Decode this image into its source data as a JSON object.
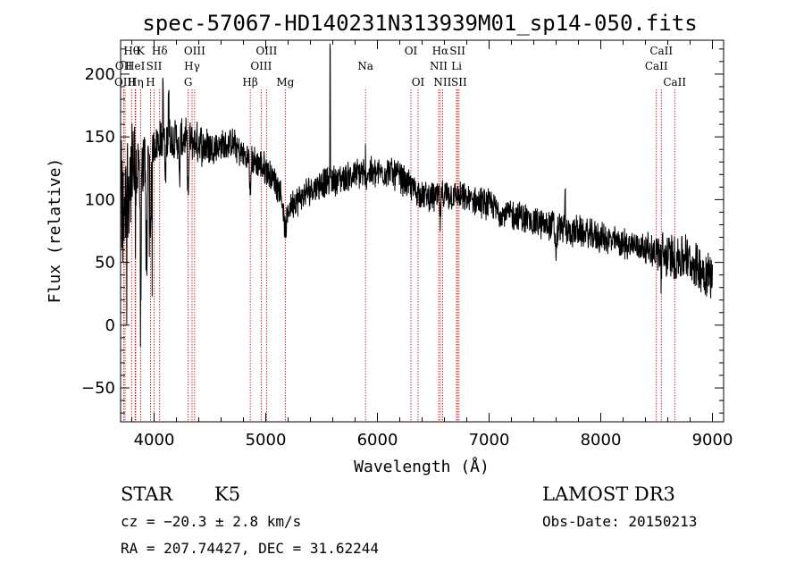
{
  "chart_data": {
    "type": "line",
    "title": "spec-57067-HD140231N313939M01_sp14-050.fits",
    "xlabel": "Wavelength (Å)",
    "ylabel": "Flux (relative)",
    "xlim": [
      3700,
      9100
    ],
    "ylim": [
      -77,
      227
    ],
    "x_ticks": [
      4000,
      5000,
      6000,
      7000,
      8000,
      9000
    ],
    "x_tick_labels": [
      "4000",
      "5000",
      "6000",
      "7000",
      "8000",
      "9000"
    ],
    "y_ticks": [
      -50,
      0,
      50,
      100,
      150,
      200
    ],
    "y_tick_labels": [
      "−50",
      "0",
      "50",
      "100",
      "150",
      "200"
    ],
    "grid": false,
    "legend": "none",
    "continuum_anchors": [
      [
        3700,
        90
      ],
      [
        3750,
        110
      ],
      [
        3800,
        120
      ],
      [
        3850,
        125
      ],
      [
        3900,
        130
      ],
      [
        3950,
        135
      ],
      [
        4000,
        145
      ],
      [
        4100,
        150
      ],
      [
        4200,
        148
      ],
      [
        4300,
        148
      ],
      [
        4400,
        145
      ],
      [
        4500,
        142
      ],
      [
        4600,
        143
      ],
      [
        4700,
        145
      ],
      [
        4800,
        135
      ],
      [
        4900,
        130
      ],
      [
        5000,
        125
      ],
      [
        5100,
        112
      ],
      [
        5200,
        95
      ],
      [
        5300,
        100
      ],
      [
        5400,
        108
      ],
      [
        5500,
        113
      ],
      [
        5600,
        115
      ],
      [
        5700,
        117
      ],
      [
        5800,
        120
      ],
      [
        5900,
        122
      ],
      [
        6000,
        121
      ],
      [
        6100,
        123
      ],
      [
        6200,
        118
      ],
      [
        6300,
        110
      ],
      [
        6400,
        103
      ],
      [
        6500,
        102
      ],
      [
        6600,
        103
      ],
      [
        6700,
        103
      ],
      [
        6800,
        100
      ],
      [
        6900,
        98
      ],
      [
        7000,
        96
      ],
      [
        7100,
        90
      ],
      [
        7200,
        88
      ],
      [
        7300,
        86
      ],
      [
        7400,
        82
      ],
      [
        7500,
        80
      ],
      [
        7600,
        80
      ],
      [
        7700,
        74
      ],
      [
        7800,
        75
      ],
      [
        7900,
        72
      ],
      [
        8000,
        70
      ],
      [
        8100,
        67
      ],
      [
        8200,
        65
      ],
      [
        8300,
        64
      ],
      [
        8400,
        62
      ],
      [
        8500,
        58
      ],
      [
        8600,
        55
      ],
      [
        8700,
        54
      ],
      [
        8800,
        50
      ],
      [
        8900,
        45
      ],
      [
        9000,
        38
      ]
    ],
    "spectral_lines": [
      {
        "label": "Hθ",
        "x": 3798,
        "row": 0
      },
      {
        "label": "K",
        "x": 3880,
        "row": 0
      },
      {
        "label": "Hδ",
        "x": 4050,
        "row": 0
      },
      {
        "label": "OIII",
        "x": 4363,
        "row": 0
      },
      {
        "label": "OIII",
        "x": 5007,
        "row": 0
      },
      {
        "label": "OI",
        "x": 6300,
        "row": 0
      },
      {
        "label": "Hα",
        "x": 6563,
        "row": 0
      },
      {
        "label": "SII",
        "x": 6717,
        "row": 0
      },
      {
        "label": "CaII",
        "x": 8542,
        "row": 0
      },
      {
        "label": "OII",
        "x": 3728,
        "row": 1
      },
      {
        "label": "HeI",
        "x": 3830,
        "row": 1
      },
      {
        "label": "SII",
        "x": 4000,
        "row": 1
      },
      {
        "label": "Hγ",
        "x": 4340,
        "row": 1
      },
      {
        "label": "OIII",
        "x": 4959,
        "row": 1
      },
      {
        "label": "Na",
        "x": 5893,
        "row": 1
      },
      {
        "label": "NII",
        "x": 6548,
        "row": 1
      },
      {
        "label": "Li",
        "x": 6708,
        "row": 1
      },
      {
        "label": "CaII",
        "x": 8498,
        "row": 1
      },
      {
        "label": "OIII",
        "x": 3740,
        "row": 2
      },
      {
        "label": "Hη",
        "x": 3835,
        "row": 2
      },
      {
        "label": "H",
        "x": 3968,
        "row": 2
      },
      {
        "label": "G",
        "x": 4305,
        "row": 2
      },
      {
        "label": "Hβ",
        "x": 4861,
        "row": 2
      },
      {
        "label": "Mg",
        "x": 5175,
        "row": 2
      },
      {
        "label": "OI",
        "x": 6364,
        "row": 2
      },
      {
        "label": "NII",
        "x": 6583,
        "row": 2
      },
      {
        "label": "SII",
        "x": 6731,
        "row": 2
      },
      {
        "label": "CaII",
        "x": 8662,
        "row": 2
      }
    ]
  },
  "info": {
    "class": "STAR",
    "subclass": "K5",
    "survey": "LAMOST DR3",
    "cz": "cz = −20.3 ± 2.8 km/s",
    "obs_date": "Obs-Date: 20150213",
    "coords": "RA = 207.74427, DEC =  31.62244"
  },
  "colors": {
    "spectrum": "#000000",
    "line_markers": "#cc0000",
    "axes": "#000000"
  }
}
